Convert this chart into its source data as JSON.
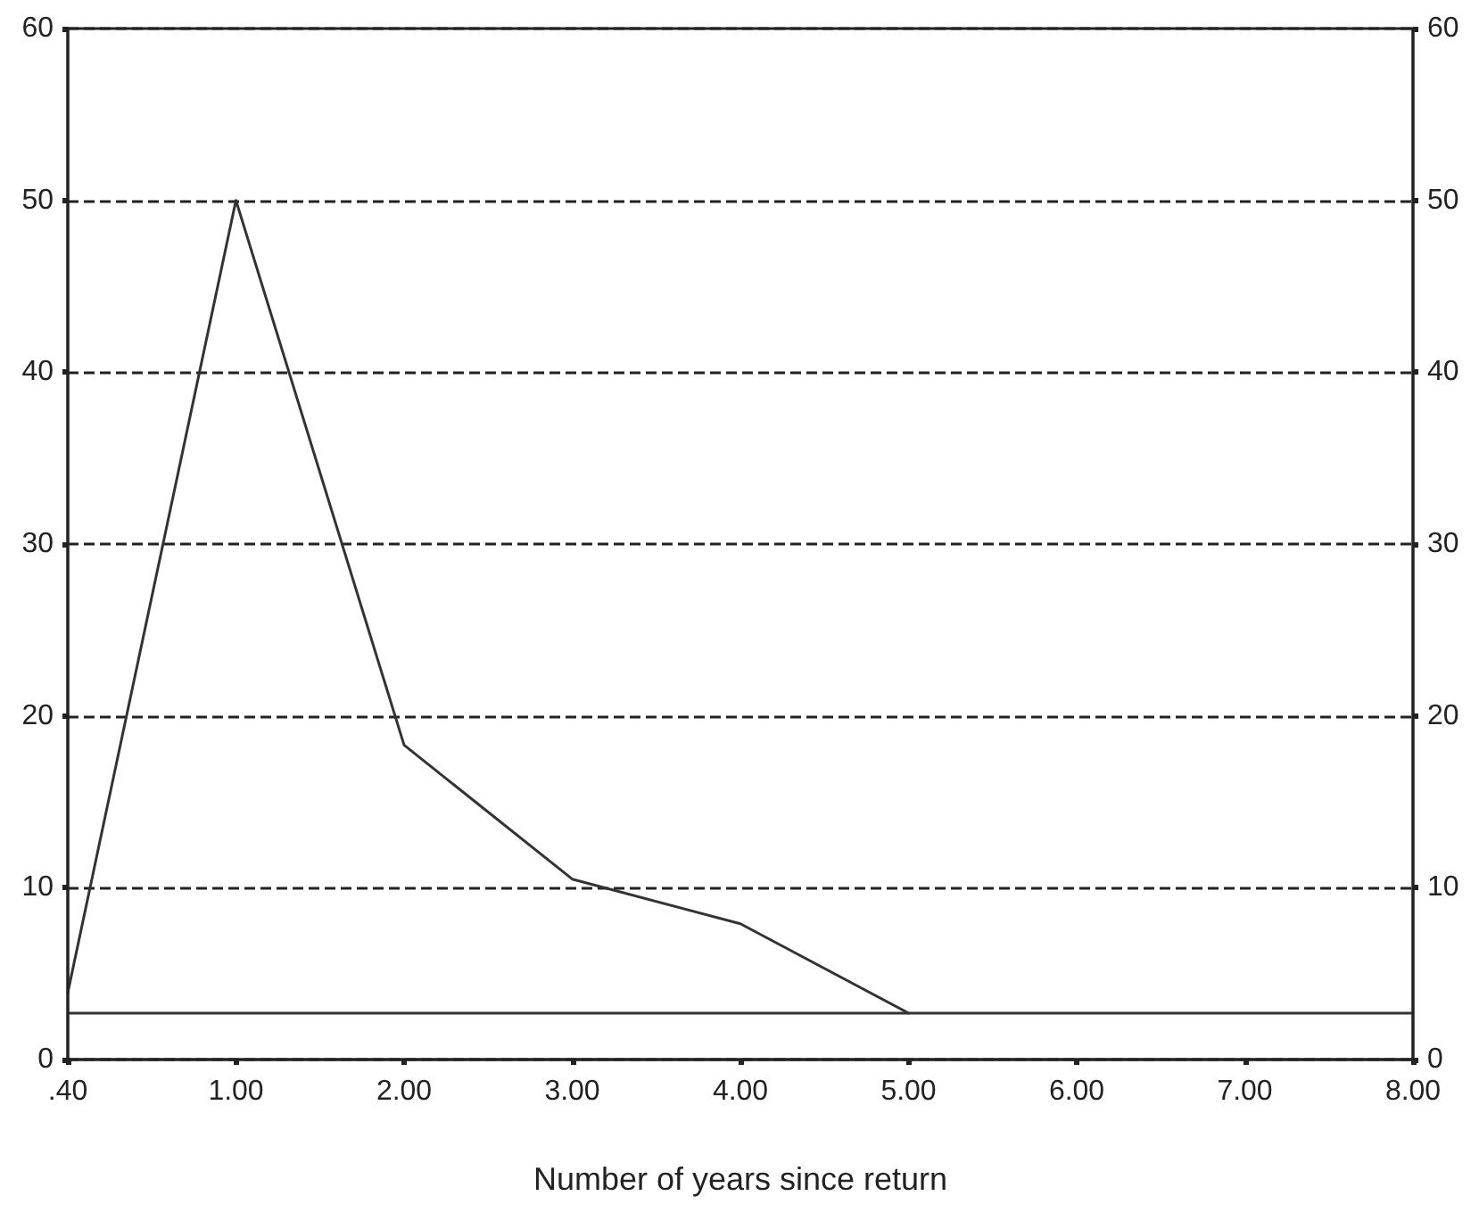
{
  "chart_data": {
    "type": "line",
    "xlabel": "Number of years since return",
    "categories": [
      ".40",
      "1.00",
      "2.00",
      "3.00",
      "4.00",
      "5.00",
      "6.00",
      "7.00",
      "8.00"
    ],
    "series": [
      {
        "color": "#333333",
        "values": [
          3.9,
          50,
          18.3,
          10.5,
          7.9,
          2.7,
          null,
          null,
          null
        ]
      }
    ],
    "ylim": [
      0,
      60
    ],
    "yticks": [
      0,
      10,
      20,
      30,
      40,
      50,
      60
    ],
    "y2lim": [
      0,
      60
    ],
    "y2ticks": [
      0,
      10,
      20,
      30,
      40,
      50,
      60
    ],
    "ref_lines": [
      {
        "axis": "y",
        "value": 2.7,
        "color": "#333333",
        "line_style": "solid"
      }
    ],
    "grid": "y",
    "line_style": "solid",
    "marker": "none"
  }
}
